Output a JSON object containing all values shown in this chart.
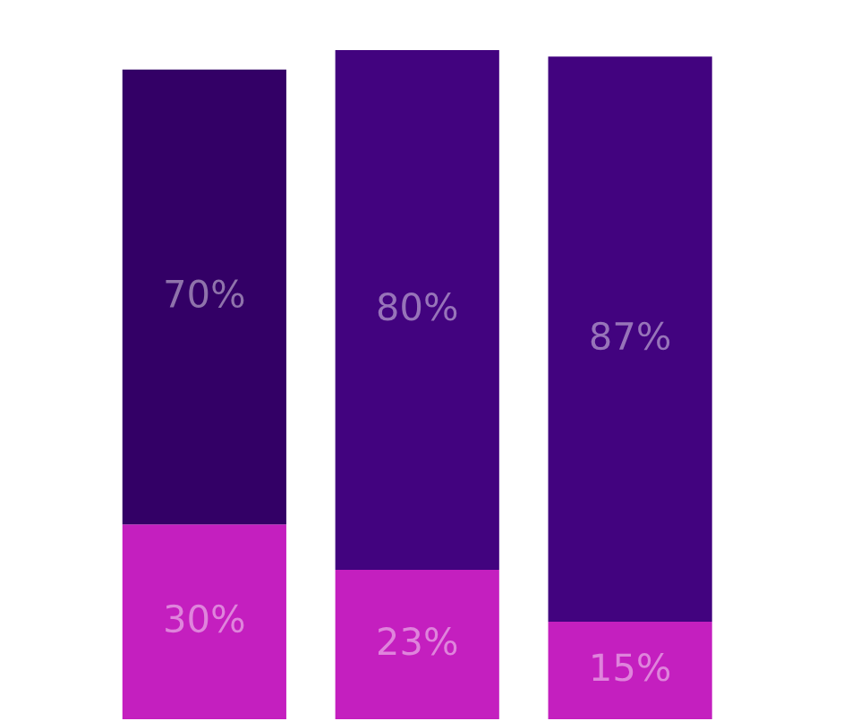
{
  "chart_data": {
    "type": "bar",
    "stacked": true,
    "categories": [
      null,
      null,
      null
    ],
    "series": [
      {
        "color": "#c41fbf",
        "values": [
          30,
          23,
          15
        ],
        "value_labels": [
          "30%",
          "23%",
          "15%"
        ]
      },
      {
        "colors": [
          "#330066",
          "#42037f",
          "#42037f"
        ],
        "values": [
          70,
          80,
          87
        ],
        "value_labels": [
          "70%",
          "80%",
          "87%"
        ]
      }
    ]
  }
}
